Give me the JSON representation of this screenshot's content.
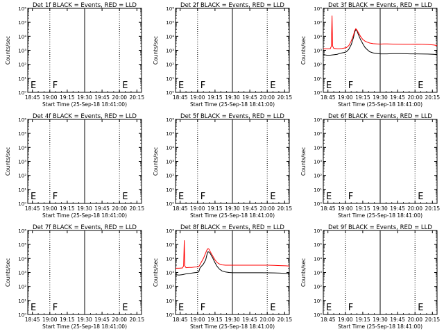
{
  "chart_data": [
    {
      "type": "line",
      "title": "Det 1f BLACK = Events, RED = LLD",
      "xlabel": "Start Time (25-Sep-18 18:41:00)",
      "ylabel": "Counts/sec",
      "x_ticks": [
        "18:45",
        "19:00",
        "19:15",
        "19:30",
        "19:45",
        "20:00",
        "20:15"
      ],
      "y_ticks": [
        "10⁰",
        "10¹",
        "10²",
        "10³",
        "10⁴",
        "10⁵",
        "10⁶"
      ],
      "xlim_minutes": [
        0,
        98
      ],
      "ylim_log10": [
        0,
        6
      ],
      "markers": [
        {
          "label": "E",
          "x_min": 0,
          "style": "dotted"
        },
        {
          "label": "F",
          "x_min": 19,
          "style": "dotted"
        },
        {
          "label": "",
          "x_min": 49,
          "style": "solid"
        },
        {
          "label": "E",
          "x_min": 79,
          "style": "dotted"
        }
      ],
      "series": []
    },
    {
      "type": "line",
      "title": "Det 2f BLACK = Events, RED = LLD",
      "xlabel": "Start Time (25-Sep-18 18:41:00)",
      "ylabel": "Counts/sec",
      "x_ticks": [
        "18:45",
        "19:00",
        "19:15",
        "19:30",
        "19:45",
        "20:00",
        "20:15"
      ],
      "y_ticks": [
        "10⁰",
        "10¹",
        "10²",
        "10³",
        "10⁴",
        "10⁵",
        "10⁶"
      ],
      "xlim_minutes": [
        0,
        98
      ],
      "ylim_log10": [
        0,
        6
      ],
      "markers": [
        {
          "label": "E",
          "x_min": 0,
          "style": "dotted"
        },
        {
          "label": "F",
          "x_min": 19,
          "style": "dotted"
        },
        {
          "label": "",
          "x_min": 49,
          "style": "solid"
        },
        {
          "label": "E",
          "x_min": 79,
          "style": "dotted"
        }
      ],
      "series": []
    },
    {
      "type": "line",
      "title": "Det 3f BLACK = Events, RED = LLD",
      "xlabel": "Start Time (25-Sep-18 18:41:00)",
      "ylabel": "Counts/sec",
      "x_ticks": [
        "18:45",
        "19:00",
        "19:15",
        "19:30",
        "19:45",
        "20:00",
        "20:15"
      ],
      "y_ticks": [
        "10⁰",
        "10¹",
        "10²",
        "10³",
        "10⁴",
        "10⁵",
        "10⁶"
      ],
      "xlim_minutes": [
        0,
        98
      ],
      "ylim_log10": [
        0,
        6
      ],
      "markers": [
        {
          "label": "E",
          "x_min": 0,
          "style": "dotted"
        },
        {
          "label": "F",
          "x_min": 19,
          "style": "dotted"
        },
        {
          "label": "",
          "x_min": 49,
          "style": "solid"
        },
        {
          "label": "E",
          "x_min": 79,
          "style": "dotted"
        }
      ],
      "series": [
        {
          "color": "#000000",
          "x": [
            0,
            3,
            6,
            9,
            12,
            14,
            16,
            18,
            20,
            22,
            24,
            26,
            27,
            28,
            29,
            30,
            32,
            34,
            36,
            38,
            40,
            43,
            46,
            49,
            52,
            55,
            60,
            65,
            70,
            75,
            80,
            85,
            90,
            95,
            98
          ],
          "y": [
            500,
            450,
            450,
            480,
            520,
            600,
            650,
            700,
            800,
            1200,
            2500,
            8000,
            20000,
            30000,
            25000,
            15000,
            6000,
            3000,
            1600,
            1100,
            800,
            650,
            600,
            560,
            560,
            560,
            580,
            580,
            570,
            560,
            560,
            550,
            540,
            520,
            500
          ]
        },
        {
          "color": "#ff0000",
          "x": [
            0,
            3,
            6,
            7,
            7.5,
            8,
            9,
            12,
            14,
            16,
            18,
            20,
            22,
            24,
            26,
            27,
            28,
            29,
            30,
            32,
            34,
            36,
            38,
            40,
            43,
            46,
            49,
            52,
            55,
            60,
            65,
            70,
            75,
            80,
            85,
            90,
            95,
            98
          ],
          "y": [
            1300,
            1300,
            1300,
            2000,
            300000,
            2000,
            1400,
            1300,
            1300,
            1350,
            1450,
            1600,
            2200,
            4500,
            12000,
            25000,
            35000,
            28000,
            20000,
            10000,
            6000,
            4500,
            3800,
            3300,
            3000,
            2900,
            2800,
            2850,
            2850,
            2800,
            2750,
            2700,
            2700,
            2750,
            2700,
            2600,
            2400,
            2200
          ]
        }
      ]
    },
    {
      "type": "line",
      "title": "Det 4f BLACK = Events, RED = LLD",
      "xlabel": "Start Time (25-Sep-18 18:41:00)",
      "ylabel": "Counts/sec",
      "x_ticks": [
        "18:45",
        "19:00",
        "19:15",
        "19:30",
        "19:45",
        "20:00",
        "20:15"
      ],
      "y_ticks": [
        "10⁰",
        "10¹",
        "10²",
        "10³",
        "10⁴",
        "10⁵",
        "10⁶"
      ],
      "xlim_minutes": [
        0,
        98
      ],
      "ylim_log10": [
        0,
        6
      ],
      "markers": [
        {
          "label": "E",
          "x_min": 0,
          "style": "dotted"
        },
        {
          "label": "F",
          "x_min": 19,
          "style": "dotted"
        },
        {
          "label": "",
          "x_min": 49,
          "style": "solid"
        },
        {
          "label": "E",
          "x_min": 79,
          "style": "dotted"
        }
      ],
      "series": []
    },
    {
      "type": "line",
      "title": "Det 5f BLACK = Events, RED = LLD",
      "xlabel": "Start Time (25-Sep-18 18:41:00)",
      "ylabel": "Counts/sec",
      "x_ticks": [
        "18:45",
        "19:00",
        "19:15",
        "19:30",
        "19:45",
        "20:00",
        "20:15"
      ],
      "y_ticks": [
        "10⁰",
        "10¹",
        "10²",
        "10³",
        "10⁴",
        "10⁵",
        "10⁶"
      ],
      "xlim_minutes": [
        0,
        98
      ],
      "ylim_log10": [
        0,
        6
      ],
      "markers": [
        {
          "label": "E",
          "x_min": 0,
          "style": "dotted"
        },
        {
          "label": "F",
          "x_min": 19,
          "style": "dotted"
        },
        {
          "label": "",
          "x_min": 49,
          "style": "solid"
        },
        {
          "label": "E",
          "x_min": 79,
          "style": "dotted"
        }
      ],
      "series": []
    },
    {
      "type": "line",
      "title": "Det 6f BLACK = Events, RED = LLD",
      "xlabel": "Start Time (25-Sep-18 18:41:00)",
      "ylabel": "Counts/sec",
      "x_ticks": [
        "18:45",
        "19:00",
        "19:15",
        "19:30",
        "19:45",
        "20:00",
        "20:15"
      ],
      "y_ticks": [
        "10⁰",
        "10¹",
        "10²",
        "10³",
        "10⁴",
        "10⁵",
        "10⁶"
      ],
      "xlim_minutes": [
        0,
        98
      ],
      "ylim_log10": [
        0,
        6
      ],
      "markers": [
        {
          "label": "E",
          "x_min": 0,
          "style": "dotted"
        },
        {
          "label": "F",
          "x_min": 19,
          "style": "dotted"
        },
        {
          "label": "",
          "x_min": 49,
          "style": "solid"
        },
        {
          "label": "E",
          "x_min": 79,
          "style": "dotted"
        }
      ],
      "series": []
    },
    {
      "type": "line",
      "title": "Det 7f BLACK = Events, RED = LLD",
      "xlabel": "Start Time (25-Sep-18 18:41:00)",
      "ylabel": "Counts/sec",
      "x_ticks": [
        "18:45",
        "19:00",
        "19:15",
        "19:30",
        "19:45",
        "20:00",
        "20:15"
      ],
      "y_ticks": [
        "10⁰",
        "10¹",
        "10²",
        "10³",
        "10⁴",
        "10⁵",
        "10⁶"
      ],
      "xlim_minutes": [
        0,
        98
      ],
      "ylim_log10": [
        0,
        6
      ],
      "markers": [
        {
          "label": "E",
          "x_min": 0,
          "style": "dotted"
        },
        {
          "label": "F",
          "x_min": 19,
          "style": "dotted"
        },
        {
          "label": "",
          "x_min": 49,
          "style": "solid"
        },
        {
          "label": "E",
          "x_min": 79,
          "style": "dotted"
        }
      ],
      "series": []
    },
    {
      "type": "line",
      "title": "Det 8f BLACK = Events, RED = LLD",
      "xlabel": "Start Time (25-Sep-18 18:41:00)",
      "ylabel": "Counts/sec",
      "x_ticks": [
        "18:45",
        "19:00",
        "19:15",
        "19:30",
        "19:45",
        "20:00",
        "20:15"
      ],
      "y_ticks": [
        "10⁰",
        "10¹",
        "10²",
        "10³",
        "10⁴",
        "10⁵",
        "10⁶"
      ],
      "xlim_minutes": [
        0,
        98
      ],
      "ylim_log10": [
        0,
        6
      ],
      "markers": [
        {
          "label": "E",
          "x_min": 0,
          "style": "dotted"
        },
        {
          "label": "F",
          "x_min": 19,
          "style": "dotted"
        },
        {
          "label": "",
          "x_min": 49,
          "style": "solid"
        },
        {
          "label": "E",
          "x_min": 79,
          "style": "dotted"
        }
      ],
      "series": [
        {
          "color": "#000000",
          "x": [
            0,
            3,
            6,
            9,
            12,
            14,
            16,
            18,
            20,
            21,
            22,
            24,
            26,
            27,
            28,
            29,
            30,
            32,
            34,
            36,
            38,
            40,
            43,
            46,
            49,
            52,
            55,
            60,
            65,
            70,
            75,
            80,
            85,
            90,
            95,
            98
          ],
          "y": [
            700,
            650,
            700,
            800,
            850,
            900,
            950,
            1000,
            1100,
            2000,
            2600,
            4000,
            8000,
            18000,
            30000,
            28000,
            22000,
            11000,
            5000,
            2600,
            1700,
            1300,
            1100,
            1000,
            950,
            950,
            950,
            950,
            950,
            950,
            950,
            940,
            930,
            900,
            850,
            800
          ]
        },
        {
          "color": "#ff0000",
          "x": [
            0,
            3,
            6,
            7,
            7.5,
            8,
            9,
            12,
            14,
            16,
            18,
            20,
            21,
            22,
            24,
            26,
            27,
            28,
            29,
            30,
            32,
            34,
            36,
            38,
            40,
            43,
            46,
            49,
            52,
            55,
            60,
            65,
            70,
            75,
            80,
            85,
            90,
            95,
            98
          ],
          "y": [
            2000,
            2000,
            2100,
            3000,
            200000,
            3000,
            2200,
            2300,
            2300,
            2400,
            2500,
            2600,
            3500,
            5000,
            10000,
            25000,
            40000,
            50000,
            45000,
            30000,
            15000,
            8000,
            5000,
            4000,
            3500,
            3300,
            3300,
            3300,
            3300,
            3300,
            3300,
            3300,
            3300,
            3300,
            3300,
            3200,
            3100,
            3000,
            2900
          ]
        }
      ]
    },
    {
      "type": "line",
      "title": "Det 9f BLACK = Events, RED = LLD",
      "xlabel": "Start Time (25-Sep-18 18:41:00)",
      "ylabel": "Counts/sec",
      "x_ticks": [
        "18:45",
        "19:00",
        "19:15",
        "19:30",
        "19:45",
        "20:00",
        "20:15"
      ],
      "y_ticks": [
        "10⁰",
        "10¹",
        "10²",
        "10³",
        "10⁴",
        "10⁵",
        "10⁶"
      ],
      "xlim_minutes": [
        0,
        98
      ],
      "ylim_log10": [
        0,
        6
      ],
      "markers": [
        {
          "label": "E",
          "x_min": 0,
          "style": "dotted"
        },
        {
          "label": "F",
          "x_min": 19,
          "style": "dotted"
        },
        {
          "label": "",
          "x_min": 49,
          "style": "solid"
        },
        {
          "label": "E",
          "x_min": 79,
          "style": "dotted"
        }
      ],
      "series": []
    }
  ]
}
